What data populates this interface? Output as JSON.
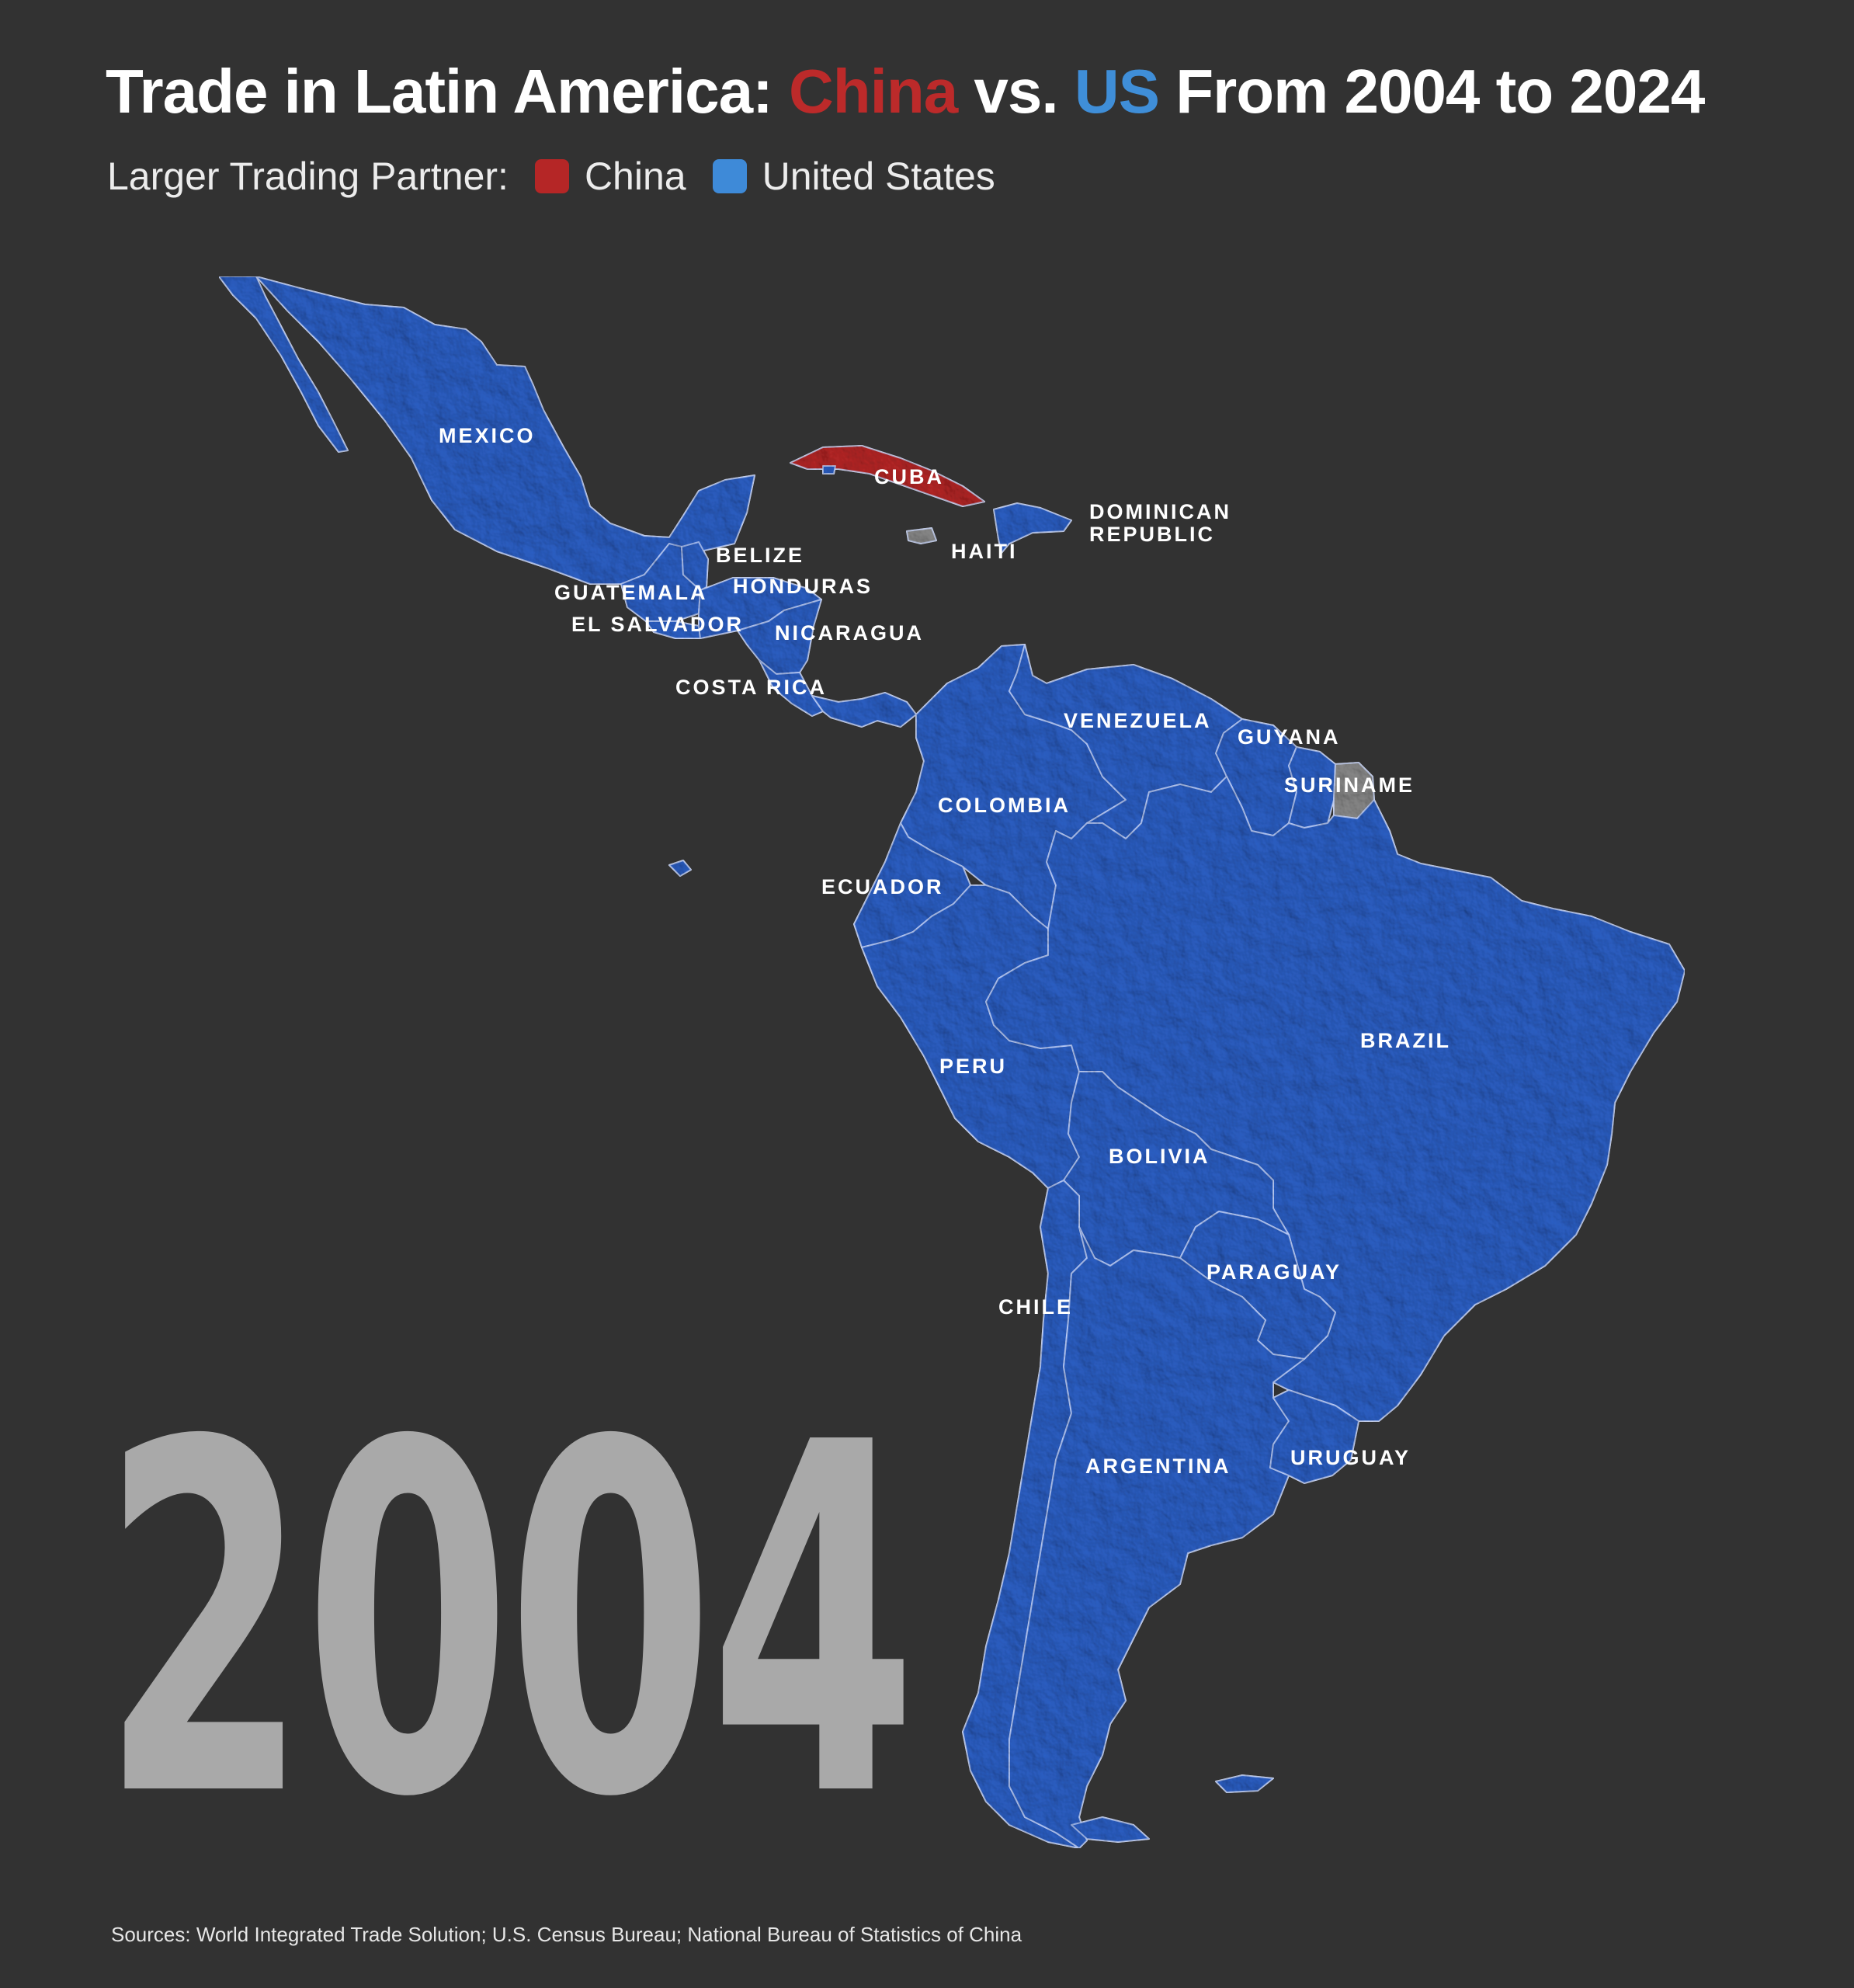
{
  "title": {
    "prefix": "Trade in Latin America: ",
    "china": "China",
    "middle": " vs. ",
    "us": "US",
    "suffix": " From 2004 to 2024"
  },
  "legend": {
    "label": "Larger Trading Partner:",
    "items": [
      {
        "name": "China",
        "color": "#b52626"
      },
      {
        "name": "United States",
        "color": "#3e8ad8"
      }
    ]
  },
  "year": "2004",
  "sources": "Sources: World Integrated Trade Solution; U.S. Census Bureau; National Bureau of Statistics of China",
  "map_colors": {
    "china": "#b52626",
    "us": "#2c5fc4",
    "no_data": "#8a8a8a"
  },
  "countries": [
    {
      "id": "mexico",
      "label": "MEXICO",
      "partner": "us"
    },
    {
      "id": "cuba",
      "label": "CUBA",
      "partner": "china"
    },
    {
      "id": "haiti",
      "label": "HAITI",
      "partner": "no_data"
    },
    {
      "id": "dominican-republic",
      "label_lines": [
        "DOMINICAN",
        "REPUBLIC"
      ],
      "partner": "us"
    },
    {
      "id": "belize",
      "label": "BELIZE",
      "partner": "us"
    },
    {
      "id": "guatemala",
      "label": "GUATEMALA",
      "partner": "us"
    },
    {
      "id": "honduras",
      "label": "HONDURAS",
      "partner": "us"
    },
    {
      "id": "el-salvador",
      "label": "EL SALVADOR",
      "partner": "us"
    },
    {
      "id": "nicaragua",
      "label": "NICARAGUA",
      "partner": "us"
    },
    {
      "id": "costa-rica",
      "label": "COSTA RICA",
      "partner": "us"
    },
    {
      "id": "venezuela",
      "label": "VENEZUELA",
      "partner": "us"
    },
    {
      "id": "guyana",
      "label": "GUYANA",
      "partner": "us"
    },
    {
      "id": "suriname",
      "label": "SURINAME",
      "partner": "us"
    },
    {
      "id": "colombia",
      "label": "COLOMBIA",
      "partner": "us"
    },
    {
      "id": "ecuador",
      "label": "ECUADOR",
      "partner": "us"
    },
    {
      "id": "peru",
      "label": "PERU",
      "partner": "us"
    },
    {
      "id": "brazil",
      "label": "BRAZIL",
      "partner": "us"
    },
    {
      "id": "bolivia",
      "label": "BOLIVIA",
      "partner": "us"
    },
    {
      "id": "paraguay",
      "label": "PARAGUAY",
      "partner": "us"
    },
    {
      "id": "chile",
      "label": "CHILE",
      "partner": "us"
    },
    {
      "id": "argentina",
      "label": "ARGENTINA",
      "partner": "us"
    },
    {
      "id": "uruguay",
      "label": "URUGUAY",
      "partner": "us"
    }
  ]
}
